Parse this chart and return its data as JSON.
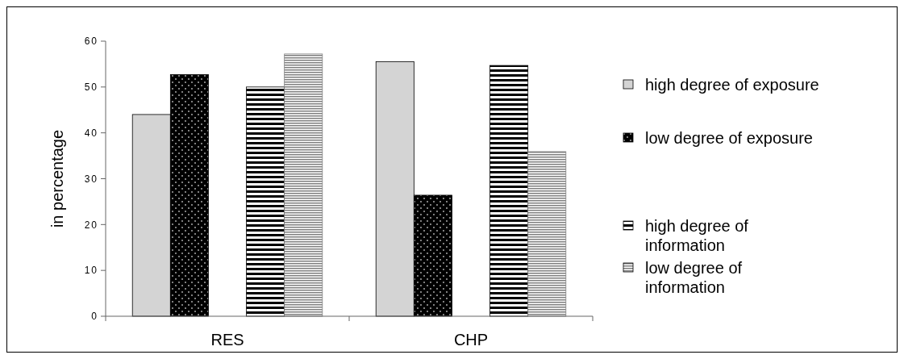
{
  "chart_data": {
    "type": "bar",
    "ylabel": "in percentage",
    "categories": [
      "RES",
      "CHP"
    ],
    "series": [
      {
        "name": "high degree of exposure",
        "color": "#d4d4d4",
        "values": [
          44,
          55.5
        ]
      },
      {
        "name": "low degree of exposure",
        "color": "#000000",
        "values": [
          52.7,
          26.4
        ]
      },
      {
        "name": "high degree of information",
        "color": "#000000",
        "values": [
          50,
          54.7
        ]
      },
      {
        "name": "low degree of information",
        "color": "#808080",
        "values": [
          57.2,
          35.9
        ]
      }
    ],
    "ylim": [
      0,
      60
    ],
    "yticks": [
      0,
      10,
      20,
      30,
      40,
      50,
      60
    ],
    "grid": false,
    "legend": "right"
  }
}
